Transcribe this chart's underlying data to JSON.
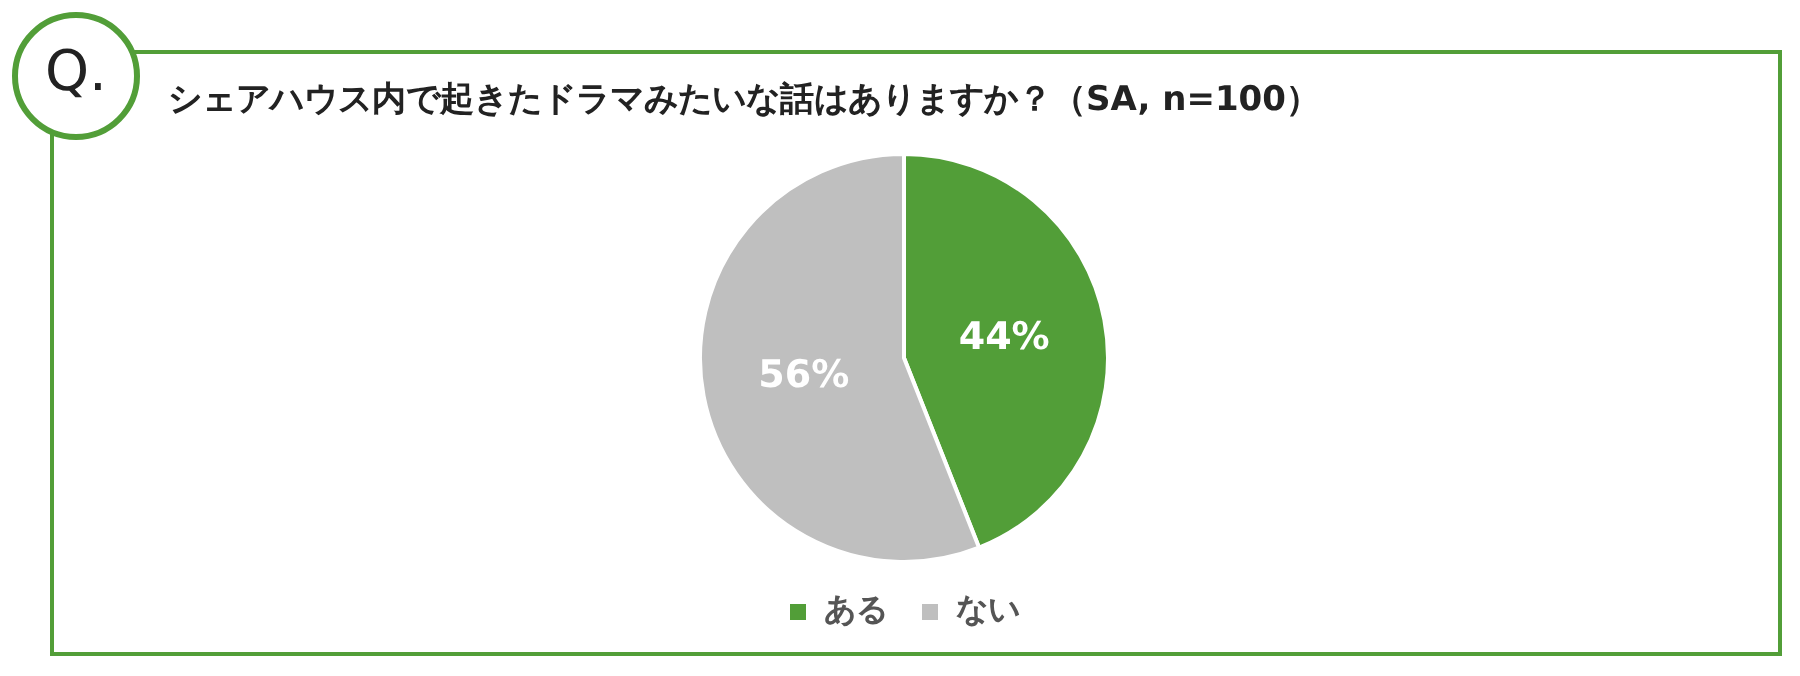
{
  "chart_data": {
    "type": "pie",
    "title": "シェアハウス内で起きたドラマみたいな話はありますか？（SA, n=100）",
    "annotations": [
      "Q."
    ],
    "categories": [
      "ある",
      "ない"
    ],
    "values": [
      44,
      56
    ],
    "colors": [
      "#529e38",
      "#bfbfbf"
    ],
    "value_labels": [
      "44%",
      "56%"
    ],
    "legend": "bottom"
  }
}
